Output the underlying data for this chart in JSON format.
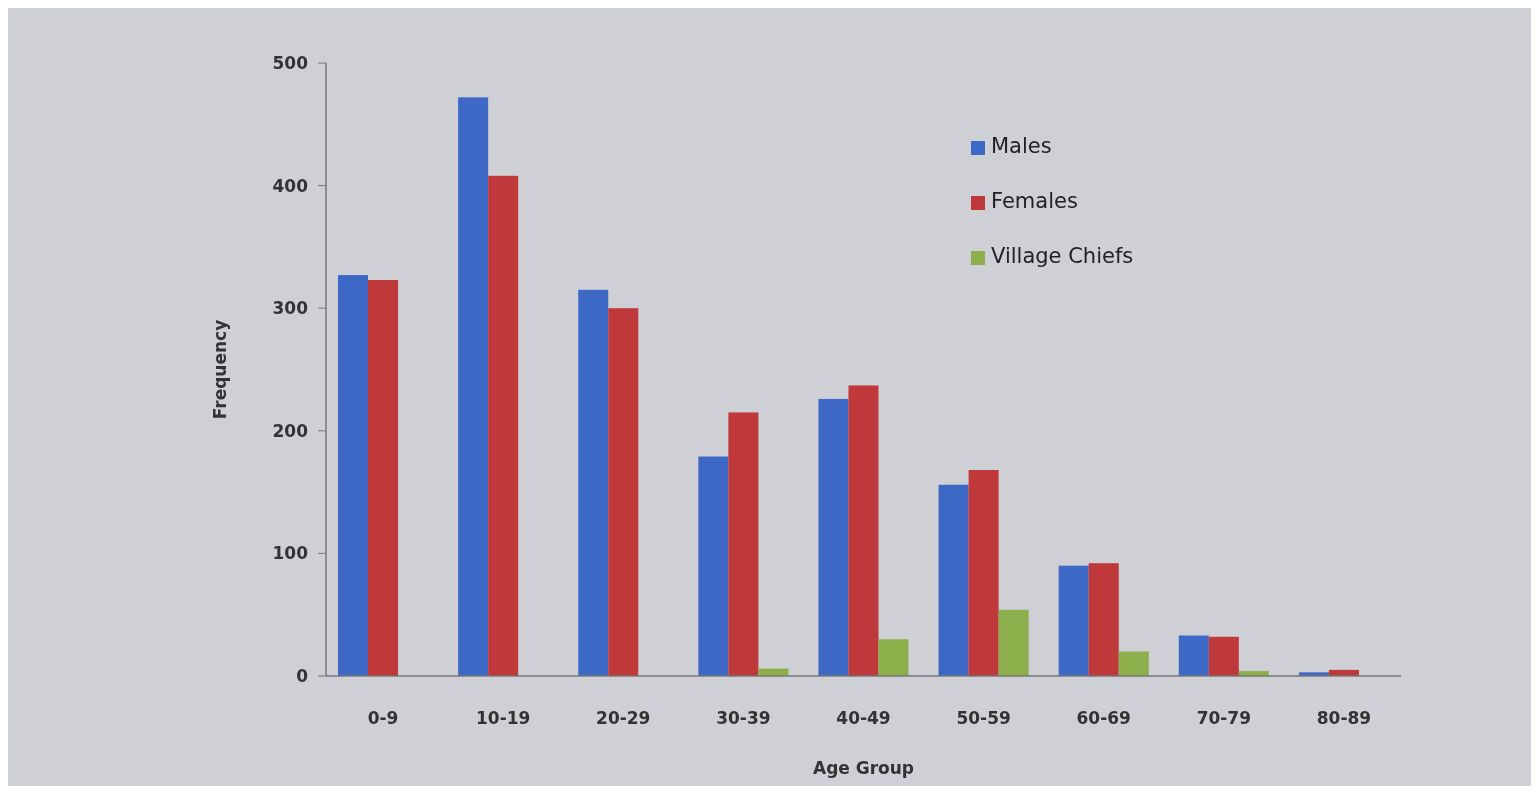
{
  "chart_data": {
    "type": "bar",
    "xlabel": "Age Group",
    "ylabel": "Frequency",
    "categories": [
      "0-9",
      "10-19",
      "20-29",
      "30-39",
      "40-49",
      "50-59",
      "60-69",
      "70-79",
      "80-89"
    ],
    "series": [
      {
        "name": "Males",
        "color": "#3d68c6",
        "values": [
          327,
          472,
          315,
          179,
          226,
          156,
          90,
          33,
          3
        ]
      },
      {
        "name": "Females",
        "color": "#c0393a",
        "values": [
          323,
          408,
          300,
          215,
          237,
          168,
          92,
          32,
          5
        ]
      },
      {
        "name": "Village Chiefs",
        "color": "#8caf4c",
        "values": [
          0,
          0,
          0,
          6,
          30,
          54,
          20,
          4,
          0
        ]
      }
    ],
    "ylim": [
      0,
      500
    ],
    "yticks": [
      0,
      100,
      200,
      300,
      400,
      500
    ],
    "grid": false,
    "legend": "top right"
  }
}
